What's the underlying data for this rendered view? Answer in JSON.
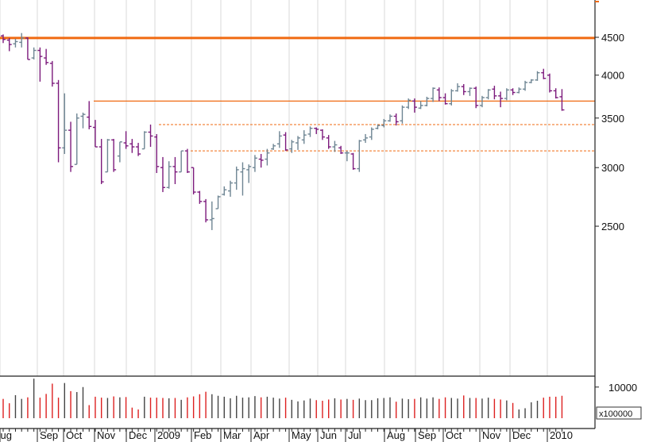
{
  "chart_data": {
    "type": "ohlc",
    "title": "",
    "xlabel": "",
    "ylabel": "",
    "price_scale": "log",
    "ylim": [
      2300,
      4800
    ],
    "y_ticks": [
      2500,
      3000,
      3500,
      4000,
      4500
    ],
    "x_labels": [
      "Aug",
      "Sep",
      "Oct",
      "Nov",
      "Dec",
      "2009",
      "Feb",
      "Mar",
      "Apr",
      "May",
      "Jun",
      "Jul",
      "Aug",
      "Sep",
      "Oct",
      "Nov",
      "Dec",
      "2010"
    ],
    "colors": {
      "up": "#6e8593",
      "down": "#7c1a7c",
      "resistance": "#f06a12",
      "vol_down": "#dd2020",
      "vol_up": "#444444"
    },
    "horizontal_lines": [
      {
        "value": 4490,
        "style": "solid-thick"
      },
      {
        "value": 3690,
        "style": "solid"
      },
      {
        "value": 3430,
        "style": "dashed"
      },
      {
        "value": 3160,
        "style": "dashed"
      }
    ],
    "bars": [
      [
        4520,
        4540,
        4420,
        4470
      ],
      [
        4460,
        4490,
        4310,
        4400
      ],
      [
        4410,
        4480,
        4360,
        4440
      ],
      [
        4430,
        4560,
        4360,
        4490
      ],
      [
        4490,
        4500,
        4200,
        4200
      ],
      [
        4220,
        4360,
        4200,
        4320
      ],
      [
        4320,
        4360,
        3920,
        4240
      ],
      [
        4220,
        4340,
        4130,
        4160
      ],
      [
        4150,
        4180,
        3860,
        3900
      ],
      [
        3900,
        3940,
        3050,
        3190
      ],
      [
        3190,
        3780,
        3130,
        3370
      ],
      [
        3370,
        3460,
        2960,
        3010
      ],
      [
        3030,
        3550,
        3030,
        3500
      ],
      [
        3520,
        3560,
        3390,
        3540
      ],
      [
        3510,
        3690,
        3380,
        3410
      ],
      [
        3400,
        3480,
        3200,
        3200
      ],
      [
        3200,
        3280,
        2850,
        2870
      ],
      [
        2960,
        3280,
        2960,
        3270
      ],
      [
        3270,
        3280,
        2960,
        2980
      ],
      [
        3110,
        3250,
        3050,
        3250
      ],
      [
        3240,
        3360,
        3180,
        3210
      ],
      [
        3230,
        3280,
        3140,
        3200
      ],
      [
        3200,
        3240,
        3110,
        3130
      ],
      [
        3180,
        3360,
        3180,
        3350
      ],
      [
        3350,
        3430,
        3200,
        3310
      ],
      [
        3300,
        3330,
        2950,
        3010
      ],
      [
        3000,
        3100,
        2780,
        2820
      ],
      [
        2820,
        3060,
        2810,
        3010
      ],
      [
        3010,
        3100,
        2850,
        2960
      ],
      [
        2960,
        3160,
        2960,
        3160
      ],
      [
        3160,
        3180,
        2950,
        2960
      ],
      [
        3000,
        3000,
        2760,
        2780
      ],
      [
        2780,
        2790,
        2680,
        2700
      ],
      [
        2700,
        2720,
        2530,
        2550
      ],
      [
        2550,
        2700,
        2470,
        2560
      ],
      [
        2640,
        2750,
        2640,
        2740
      ],
      [
        2760,
        2830,
        2750,
        2800
      ],
      [
        2790,
        2880,
        2740,
        2860
      ],
      [
        2860,
        3010,
        2800,
        2980
      ],
      [
        2960,
        3050,
        2750,
        2990
      ],
      [
        2980,
        3030,
        2860,
        3010
      ],
      [
        3000,
        3120,
        2960,
        3090
      ],
      [
        3080,
        3130,
        3000,
        3070
      ],
      [
        3080,
        3180,
        3020,
        3140
      ],
      [
        3180,
        3230,
        3170,
        3210
      ],
      [
        3230,
        3360,
        3190,
        3310
      ],
      [
        3320,
        3350,
        3160,
        3170
      ],
      [
        3180,
        3270,
        3140,
        3250
      ],
      [
        3240,
        3310,
        3170,
        3290
      ],
      [
        3270,
        3370,
        3230,
        3320
      ],
      [
        3330,
        3410,
        3300,
        3390
      ],
      [
        3390,
        3400,
        3330,
        3380
      ],
      [
        3370,
        3380,
        3270,
        3300
      ],
      [
        3290,
        3320,
        3180,
        3200
      ],
      [
        3200,
        3260,
        3150,
        3220
      ],
      [
        3190,
        3210,
        3130,
        3140
      ],
      [
        3140,
        3160,
        3060,
        3140
      ],
      [
        3130,
        3140,
        2980,
        2990
      ],
      [
        2990,
        3270,
        2960,
        3260
      ],
      [
        3270,
        3330,
        3240,
        3290
      ],
      [
        3300,
        3400,
        3270,
        3380
      ],
      [
        3390,
        3430,
        3380,
        3420
      ],
      [
        3420,
        3490,
        3400,
        3470
      ],
      [
        3470,
        3540,
        3460,
        3520
      ],
      [
        3520,
        3550,
        3420,
        3460
      ],
      [
        3470,
        3640,
        3440,
        3620
      ],
      [
        3620,
        3720,
        3600,
        3700
      ],
      [
        3690,
        3720,
        3560,
        3620
      ],
      [
        3610,
        3690,
        3600,
        3640
      ],
      [
        3640,
        3740,
        3630,
        3720
      ],
      [
        3720,
        3850,
        3680,
        3840
      ],
      [
        3820,
        3850,
        3690,
        3730
      ],
      [
        3730,
        3780,
        3650,
        3660
      ],
      [
        3660,
        3830,
        3640,
        3810
      ],
      [
        3810,
        3900,
        3800,
        3860
      ],
      [
        3860,
        3890,
        3760,
        3800
      ],
      [
        3800,
        3850,
        3750,
        3840
      ],
      [
        3840,
        3860,
        3610,
        3640
      ],
      [
        3640,
        3750,
        3620,
        3730
      ],
      [
        3730,
        3830,
        3710,
        3820
      ],
      [
        3830,
        3870,
        3710,
        3750
      ],
      [
        3750,
        3800,
        3620,
        3720
      ],
      [
        3720,
        3840,
        3700,
        3820
      ],
      [
        3820,
        3840,
        3760,
        3790
      ],
      [
        3790,
        3850,
        3780,
        3830
      ],
      [
        3830,
        3930,
        3810,
        3910
      ],
      [
        3910,
        3950,
        3900,
        3940
      ],
      [
        3940,
        4050,
        3930,
        4030
      ],
      [
        4030,
        4080,
        3950,
        3960
      ],
      [
        4000,
        4020,
        3790,
        3810
      ],
      [
        3810,
        3840,
        3720,
        3730
      ],
      [
        3740,
        3830,
        3580,
        3590
      ]
    ],
    "volume": {
      "unit": "x100000",
      "ylim": [
        0,
        13000
      ],
      "y_ticks": [
        10000
      ],
      "values": [
        6200,
        4800,
        7400,
        6200,
        6700,
        12700,
        6600,
        7800,
        11100,
        6600,
        11300,
        8700,
        8400,
        10000,
        4200,
        6900,
        6600,
        6500,
        7000,
        6700,
        6800,
        3400,
        2800,
        6900,
        6600,
        6600,
        6500,
        6400,
        6500,
        5900,
        6700,
        7000,
        7700,
        8500,
        7700,
        7200,
        6900,
        6400,
        7200,
        6600,
        6700,
        7100,
        6700,
        6900,
        6600,
        6300,
        6600,
        5900,
        5400,
        5700,
        6300,
        5800,
        5600,
        6000,
        6400,
        6000,
        6200,
        5900,
        6300,
        5800,
        5800,
        6400,
        6500,
        6700,
        5300,
        6300,
        6100,
        6200,
        6700,
        6300,
        6700,
        6200,
        6700,
        6500,
        6300,
        7300,
        6500,
        6500,
        6300,
        6600,
        6200,
        6000,
        5700,
        4900,
        2800,
        3200,
        5100,
        5600,
        6600,
        6900,
        6900,
        7200
      ]
    }
  }
}
